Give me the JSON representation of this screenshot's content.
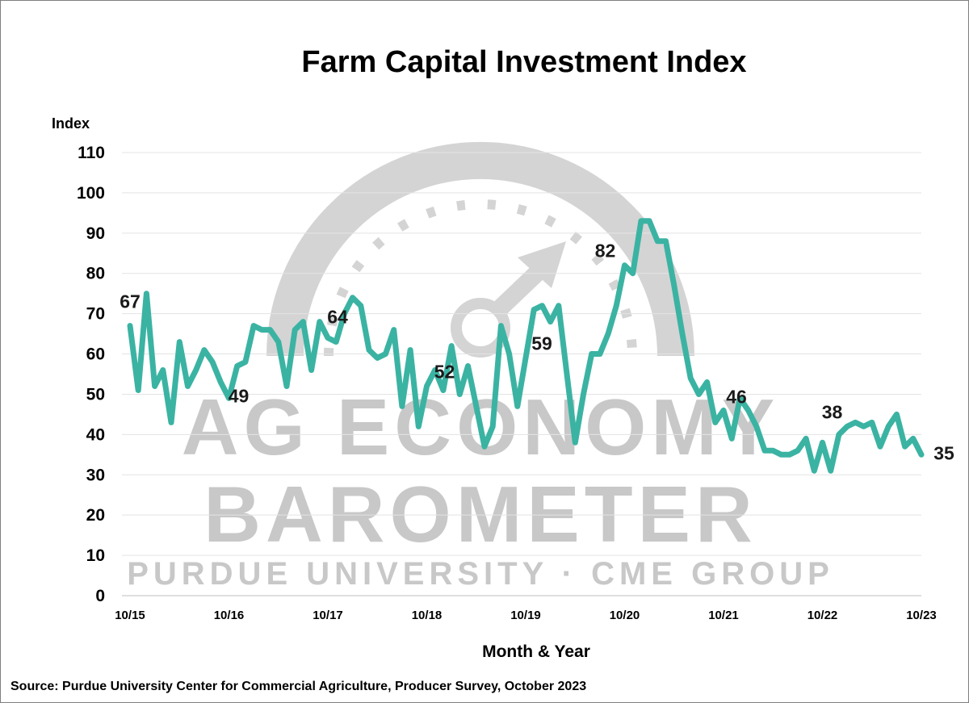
{
  "chart_data": {
    "type": "line",
    "title": "Farm Capital Investment Index",
    "ylabel": "Index",
    "xlabel": "Month & Year",
    "ylim": [
      0,
      110
    ],
    "y_ticks": [
      0,
      10,
      20,
      30,
      40,
      50,
      60,
      70,
      80,
      90,
      100,
      110
    ],
    "x_ticks": [
      "10/15",
      "10/16",
      "10/17",
      "10/18",
      "10/19",
      "10/20",
      "10/21",
      "10/22",
      "10/23"
    ],
    "grid": true,
    "legend": "none",
    "line_color": "#3bb3a3",
    "series": [
      {
        "values": [
          67,
          51,
          75,
          52,
          56,
          43,
          63,
          52,
          56,
          61,
          58,
          53,
          49,
          57,
          58,
          67,
          66,
          66,
          63,
          52,
          66,
          68,
          56,
          68,
          64,
          63,
          70,
          74,
          72,
          61,
          59,
          60,
          66,
          47,
          61,
          42,
          52,
          56,
          51,
          62,
          50,
          57,
          47,
          37,
          42,
          67,
          60,
          47,
          59,
          71,
          72,
          68,
          72,
          55,
          38,
          50,
          60,
          60,
          65,
          72,
          82,
          80,
          93,
          93,
          88,
          88,
          77,
          65,
          54,
          50,
          53,
          43,
          46,
          39,
          49,
          46,
          42,
          36,
          36,
          35,
          35,
          36,
          39,
          31,
          38,
          31,
          40,
          42,
          43,
          42,
          43,
          37,
          42,
          45,
          37,
          39,
          35
        ]
      }
    ],
    "annotations": [
      {
        "label": "67",
        "x": "10/15",
        "y": 67
      },
      {
        "label": "49",
        "x": "10/16",
        "y": 49
      },
      {
        "label": "64",
        "x": "10/17",
        "y": 64
      },
      {
        "label": "52",
        "x": "10/18",
        "y": 52
      },
      {
        "label": "59",
        "x": "10/19",
        "y": 59
      },
      {
        "label": "82",
        "x": "10/20",
        "y": 82
      },
      {
        "label": "46",
        "x": "10/21",
        "y": 46
      },
      {
        "label": "38",
        "x": "10/22",
        "y": 38
      },
      {
        "label": "35",
        "x": "10/23",
        "y": 35
      }
    ]
  },
  "watermark": {
    "line1": "AG ECONOMY",
    "line2": "BAROMETER",
    "line3": "PURDUE UNIVERSITY · CME GROUP",
    "color": "#c8c8c8"
  },
  "source": "Source: Purdue University Center for Commercial Agriculture, Producer Survey, October 2023"
}
